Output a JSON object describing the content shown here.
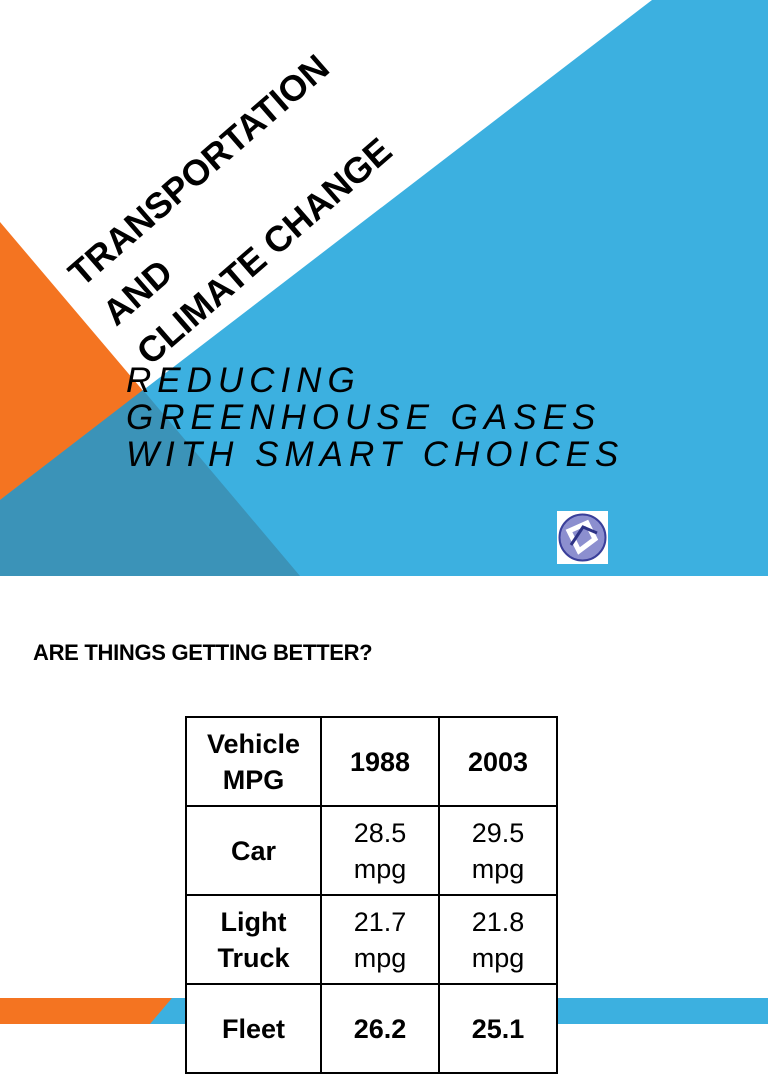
{
  "slide1": {
    "title_lines": [
      "Transportation",
      "and",
      "Climate Change"
    ],
    "subtitle_lines": [
      "Reducing",
      "Greenhouse Gases",
      "with Smart Choices"
    ]
  },
  "slide2": {
    "title": "Are things getting better?",
    "table": {
      "header": [
        "Vehicle MPG",
        "1988",
        "2003"
      ],
      "rows": [
        [
          "Car",
          "28.5 mpg",
          "29.5 mpg"
        ],
        [
          "Light Truck",
          "21.7 mpg",
          "21.8 mpg"
        ],
        [
          "Fleet",
          "26.2",
          "25.1"
        ]
      ]
    }
  }
}
